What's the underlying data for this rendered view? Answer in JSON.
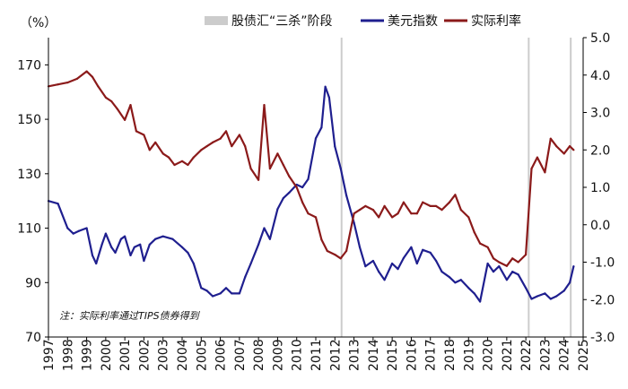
{
  "chart_data": {
    "type": "line",
    "title": "",
    "left_unit_label": "（%）",
    "note": "注：实际利率通过TIPS债券得到",
    "x_ticks": [
      "1997",
      "1998",
      "1999",
      "2000",
      "2001",
      "2002",
      "2003",
      "2004",
      "2005",
      "2006",
      "2007",
      "2008",
      "2009",
      "2010",
      "2011",
      "2012",
      "2013",
      "2014",
      "2015",
      "2016",
      "2017",
      "2018",
      "2019",
      "2020",
      "2021",
      "2022",
      "2023",
      "2024",
      "2025"
    ],
    "x_range": [
      1997,
      2025
    ],
    "left_axis": {
      "range": [
        70,
        180
      ],
      "ticks": [
        70,
        90,
        110,
        130,
        150,
        170
      ],
      "tick_labels": [
        "70",
        "90",
        "110",
        "130",
        "150",
        "170"
      ]
    },
    "right_axis": {
      "range": [
        -3.0,
        5.0
      ],
      "ticks": [
        -3,
        -2,
        -1,
        0,
        1,
        2,
        3,
        4,
        5
      ],
      "tick_labels": [
        "-3.0",
        "-2.0",
        "-1.0",
        "0.0",
        "1.0",
        "2.0",
        "3.0",
        "4.0",
        "5.0"
      ]
    },
    "legend": [
      {
        "name": "股债汇“三杀”阶段",
        "kind": "band",
        "color": "#cccccc"
      },
      {
        "name": "美元指数",
        "kind": "line",
        "color": "#1f1f8f"
      },
      {
        "name": "实际利率",
        "kind": "line",
        "color": "#8b1a1a"
      }
    ],
    "shaded_periods": [
      {
        "x": 2012.35,
        "label": "2012"
      },
      {
        "x": 2022.15,
        "label": "2022"
      },
      {
        "x": 2024.35,
        "label": "2024"
      }
    ],
    "series": [
      {
        "name": "美元指数",
        "axis": "left",
        "color": "#1f1f8f",
        "x": [
          1997.0,
          1997.5,
          1998.0,
          1998.3,
          1998.6,
          1999.0,
          1999.3,
          1999.5,
          1999.8,
          2000.0,
          2000.3,
          2000.5,
          2000.8,
          2001.0,
          2001.3,
          2001.5,
          2001.8,
          2002.0,
          2002.3,
          2002.6,
          2003.0,
          2003.5,
          2004.0,
          2004.3,
          2004.6,
          2005.0,
          2005.3,
          2005.6,
          2006.0,
          2006.3,
          2006.6,
          2007.0,
          2007.3,
          2007.6,
          2008.0,
          2008.3,
          2008.6,
          2009.0,
          2009.3,
          2009.6,
          2010.0,
          2010.3,
          2010.6,
          2011.0,
          2011.3,
          2011.5,
          2011.7,
          2012.0,
          2012.3,
          2012.6,
          2013.0,
          2013.3,
          2013.6,
          2014.0,
          2014.3,
          2014.6,
          2015.0,
          2015.3,
          2015.6,
          2016.0,
          2016.3,
          2016.6,
          2017.0,
          2017.3,
          2017.6,
          2018.0,
          2018.3,
          2018.6,
          2019.0,
          2019.3,
          2019.6,
          2020.0,
          2020.3,
          2020.6,
          2021.0,
          2021.3,
          2021.6,
          2022.0,
          2022.3,
          2022.6,
          2023.0,
          2023.3,
          2023.6,
          2024.0,
          2024.3,
          2024.5
        ],
        "values": [
          120,
          119,
          110,
          108,
          109,
          110,
          100,
          97,
          104,
          108,
          103,
          101,
          106,
          107,
          100,
          103,
          104,
          98,
          104,
          106,
          107,
          106,
          103,
          101,
          97,
          88,
          87,
          85,
          86,
          88,
          86,
          86,
          92,
          97,
          104,
          110,
          106,
          117,
          121,
          123,
          126,
          125,
          128,
          143,
          147,
          162,
          158,
          140,
          132,
          122,
          112,
          103,
          96,
          98,
          94,
          91,
          97,
          95,
          99,
          103,
          97,
          102,
          101,
          98,
          94,
          92,
          90,
          91,
          88,
          86,
          83,
          97,
          94,
          96,
          91,
          94,
          93,
          88,
          84,
          85,
          86,
          84,
          85,
          87,
          90,
          96
        ]
      },
      {
        "name": "实际利率",
        "axis": "right",
        "color": "#8b1a1a",
        "x": [
          1997.0,
          1997.5,
          1998.0,
          1998.5,
          1999.0,
          1999.3,
          1999.6,
          2000.0,
          2000.3,
          2000.6,
          2001.0,
          2001.3,
          2001.6,
          2002.0,
          2002.3,
          2002.6,
          2003.0,
          2003.3,
          2003.6,
          2004.0,
          2004.3,
          2004.6,
          2005.0,
          2005.3,
          2005.6,
          2006.0,
          2006.3,
          2006.6,
          2007.0,
          2007.3,
          2007.6,
          2008.0,
          2008.3,
          2008.6,
          2009.0,
          2009.3,
          2009.6,
          2010.0,
          2010.3,
          2010.6,
          2011.0,
          2011.3,
          2011.6,
          2012.0,
          2012.3,
          2012.6,
          2013.0,
          2013.3,
          2013.6,
          2014.0,
          2014.3,
          2014.6,
          2015.0,
          2015.3,
          2015.6,
          2016.0,
          2016.3,
          2016.6,
          2017.0,
          2017.3,
          2017.6,
          2018.0,
          2018.3,
          2018.6,
          2019.0,
          2019.3,
          2019.6,
          2020.0,
          2020.3,
          2020.6,
          2021.0,
          2021.3,
          2021.6,
          2022.0,
          2022.3,
          2022.6,
          2023.0,
          2023.3,
          2023.6,
          2024.0,
          2024.3,
          2024.5
        ],
        "values": [
          3.7,
          3.75,
          3.8,
          3.9,
          4.1,
          3.95,
          3.7,
          3.4,
          3.3,
          3.1,
          2.8,
          3.2,
          2.5,
          2.4,
          2.0,
          2.2,
          1.9,
          1.8,
          1.6,
          1.7,
          1.6,
          1.8,
          2.0,
          2.1,
          2.2,
          2.3,
          2.5,
          2.1,
          2.4,
          2.1,
          1.5,
          1.2,
          3.2,
          1.5,
          1.9,
          1.6,
          1.3,
          1.0,
          0.6,
          0.3,
          0.2,
          -0.4,
          -0.7,
          -0.8,
          -0.9,
          -0.7,
          0.3,
          0.4,
          0.5,
          0.4,
          0.2,
          0.5,
          0.2,
          0.3,
          0.6,
          0.3,
          0.3,
          0.6,
          0.5,
          0.5,
          0.4,
          0.6,
          0.8,
          0.4,
          0.2,
          -0.2,
          -0.5,
          -0.6,
          -0.9,
          -1.0,
          -1.1,
          -0.9,
          -1.0,
          -0.8,
          1.5,
          1.8,
          1.4,
          2.3,
          2.1,
          1.9,
          2.1,
          2.0
        ]
      }
    ]
  }
}
